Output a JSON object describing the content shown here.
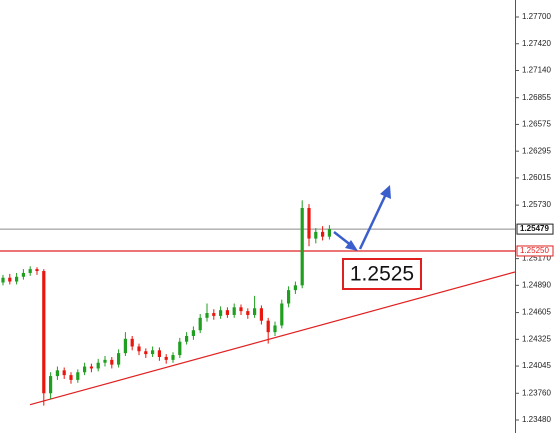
{
  "chart_data": {
    "type": "candlestick",
    "open": [
      1.2492,
      1.2497,
      1.2493,
      1.2498,
      1.2502,
      1.2506,
      1.2504,
      1.2376,
      1.2394,
      1.24,
      1.2395,
      1.239,
      1.2398,
      1.2404,
      1.2402,
      1.2408,
      1.2411,
      1.2406,
      1.2418,
      1.2433,
      1.2425,
      1.242,
      1.2417,
      1.2421,
      1.2414,
      1.2411,
      1.2416,
      1.243,
      1.2436,
      1.2442,
      1.2455,
      1.246,
      1.2457,
      1.2463,
      1.2458,
      1.2466,
      1.2462,
      1.2458,
      1.2465,
      1.2452,
      1.244,
      1.2447,
      1.247,
      1.2484,
      1.2489,
      1.257,
      1.2538,
      1.2545,
      1.254
    ],
    "high": [
      1.25,
      1.2501,
      1.2502,
      1.2506,
      1.2509,
      1.2508,
      1.2506,
      1.2398,
      1.2404,
      1.2403,
      1.2398,
      1.2401,
      1.2408,
      1.2407,
      1.2412,
      1.2415,
      1.2414,
      1.2422,
      1.244,
      1.2436,
      1.2428,
      1.2423,
      1.2425,
      1.2424,
      1.2417,
      1.2419,
      1.2434,
      1.244,
      1.2446,
      1.2459,
      1.247,
      1.2464,
      1.2467,
      1.2466,
      1.247,
      1.2469,
      1.2465,
      1.2478,
      1.2468,
      1.2455,
      1.2451,
      1.2474,
      1.2488,
      1.2493,
      1.2578,
      1.2574,
      1.2549,
      1.2551,
      1.2552
    ],
    "low": [
      1.2489,
      1.249,
      1.249,
      1.2495,
      1.2499,
      1.25,
      1.2363,
      1.237,
      1.239,
      1.2391,
      1.2386,
      1.2387,
      1.2395,
      1.2398,
      1.2399,
      1.2404,
      1.2402,
      1.2403,
      1.2415,
      1.2421,
      1.2416,
      1.2413,
      1.2414,
      1.241,
      1.2407,
      1.2408,
      1.2413,
      1.2427,
      1.2432,
      1.2439,
      1.2451,
      1.2453,
      1.2454,
      1.2455,
      1.2455,
      1.2458,
      1.2454,
      1.2455,
      1.2448,
      1.2428,
      1.2436,
      1.2444,
      1.2466,
      1.248,
      1.2486,
      1.253,
      1.2533,
      1.2536,
      1.2537
    ],
    "close": [
      1.2497,
      1.2493,
      1.2498,
      1.2502,
      1.2506,
      1.2504,
      1.2376,
      1.2394,
      1.24,
      1.2395,
      1.239,
      1.2398,
      1.2404,
      1.2402,
      1.2408,
      1.2411,
      1.2406,
      1.2418,
      1.2433,
      1.2425,
      1.242,
      1.2417,
      1.2421,
      1.2414,
      1.2411,
      1.2416,
      1.243,
      1.2436,
      1.2442,
      1.2455,
      1.246,
      1.2457,
      1.2463,
      1.2458,
      1.2466,
      1.2462,
      1.2458,
      1.2465,
      1.2452,
      1.244,
      1.2447,
      1.247,
      1.2484,
      1.2489,
      1.257,
      1.2538,
      1.2545,
      1.254,
      1.2548
    ],
    "up_color": "#1f9e1f",
    "down_color": "#e8160c",
    "ylim": [
      1.23344,
      1.27878
    ],
    "yticks": [
      {
        "value": 1.277,
        "label": "1.27700"
      },
      {
        "value": 1.2742,
        "label": "1.27420"
      },
      {
        "value": 1.2714,
        "label": "1.27140"
      },
      1.26855,
      1.26575,
      1.26295,
      1.26015,
      {
        "value": 1.2573,
        "label": "1.25730"
      },
      {
        "value": 1.2517,
        "label": "1.25170"
      },
      {
        "value": 1.2489,
        "label": "1.24890"
      },
      1.24605,
      1.24325,
      1.24045,
      {
        "value": 1.2376,
        "label": "1.23760"
      },
      {
        "value": 1.2348,
        "label": "1.23480"
      }
    ],
    "current_price": 1.25479,
    "level": {
      "value": 1.2525,
      "label": "1.25250"
    },
    "trendline": {
      "start": 1.2364,
      "end": 1.2503
    },
    "annotation": "1.2525"
  }
}
